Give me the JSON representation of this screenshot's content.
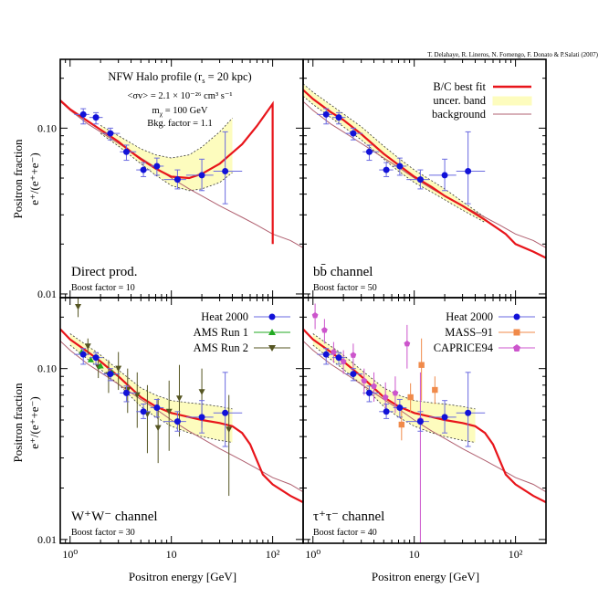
{
  "credit": "T. Delahaye, R. Lineros, N. Fornengo, F. Donato & P.Salati (2007)",
  "shared_axes": {
    "xlabel": "Positron energy [GeV]",
    "ylabel_main": "Positron fraction",
    "ylabel_formula": "e⁺/(e⁺+e⁻)",
    "xscale": "log",
    "yscale": "log",
    "xlim": [
      0.8,
      200
    ],
    "ylim": [
      0.0095,
      0.26
    ],
    "x_tick_labels": [
      "10⁰",
      "10",
      "10²"
    ],
    "y_tick_labels": [
      "0.10",
      "0.01"
    ]
  },
  "top_left_notes": {
    "line1": "NFW Halo profile (r",
    "line1_sub": "s",
    "line1_end": " = 20 kpc)",
    "line2": "<σv> = 2.1 × 10⁻²⁶ cm³ s⁻¹",
    "line3": "m",
    "line3_sub": "χ",
    "line3_end": " = 100 GeV",
    "line4": "Bkg. factor = 1.1"
  },
  "legend_model": {
    "best_fit": "B/C best fit",
    "band": "uncer. band",
    "background": "background"
  },
  "legend_data_bl": {
    "heat": "Heat 2000",
    "ams1": "AMS Run 1",
    "ams2": "AMS Run 2"
  },
  "legend_data_br": {
    "heat": "Heat 2000",
    "mass": "MASS–91",
    "caprice": "CAPRICE94"
  },
  "colors": {
    "best_fit": "#e8151b",
    "band": "#fdfcbe",
    "background": "#b06070",
    "heat": "#1212d8",
    "heat_err": "#6a6ae0",
    "ams1": "#22aa22",
    "ams2": "#555522",
    "mass": "#f08a4a",
    "caprice": "#cc55cc"
  },
  "chart_data": [
    {
      "type": "line",
      "panel": "top-left",
      "channel_label": "Direct prod.",
      "boost_label": "Boost factor = 10",
      "background": {
        "x": [
          0.8,
          1,
          1.5,
          2,
          3,
          5,
          7,
          10,
          15,
          20,
          30,
          50,
          70,
          100,
          150,
          200
        ],
        "y": [
          0.145,
          0.128,
          0.106,
          0.095,
          0.081,
          0.066,
          0.058,
          0.05,
          0.043,
          0.039,
          0.034,
          0.029,
          0.026,
          0.023,
          0.021,
          0.019
        ]
      },
      "best_fit": {
        "x": [
          0.8,
          1,
          1.5,
          2,
          3,
          4,
          5,
          7,
          10,
          15,
          20,
          30,
          50,
          70,
          100,
          100.1
        ],
        "y": [
          0.147,
          0.13,
          0.11,
          0.098,
          0.083,
          0.072,
          0.065,
          0.057,
          0.051,
          0.05,
          0.053,
          0.061,
          0.08,
          0.103,
          0.14,
          0.02
        ]
      },
      "band_upper": {
        "x": [
          2,
          3,
          5,
          7,
          10,
          15,
          20,
          30,
          40
        ],
        "y": [
          0.104,
          0.09,
          0.075,
          0.069,
          0.066,
          0.069,
          0.077,
          0.095,
          0.115
        ]
      },
      "band_lower": {
        "x": [
          2,
          3,
          5,
          7,
          10,
          15,
          20,
          30,
          40
        ],
        "y": [
          0.093,
          0.078,
          0.061,
          0.052,
          0.045,
          0.042,
          0.043,
          0.047,
          0.054
        ]
      },
      "heat": {
        "x": [
          1.35,
          1.8,
          2.5,
          3.6,
          5.3,
          7.2,
          11.5,
          20,
          34
        ],
        "y": [
          0.121,
          0.116,
          0.093,
          0.072,
          0.056,
          0.059,
          0.049,
          0.052,
          0.055
        ],
        "xlo": [
          1.1,
          1.55,
          2.1,
          3.1,
          4.5,
          6.2,
          8.4,
          14,
          26
        ],
        "xhi": [
          1.55,
          2.1,
          3.1,
          4.5,
          6.2,
          8.4,
          14,
          26,
          50
        ],
        "ylo": [
          0.106,
          0.106,
          0.085,
          0.064,
          0.051,
          0.052,
          0.043,
          0.042,
          0.035
        ],
        "yhi": [
          0.131,
          0.124,
          0.1,
          0.079,
          0.062,
          0.066,
          0.056,
          0.065,
          0.095
        ]
      }
    },
    {
      "type": "line",
      "panel": "top-right",
      "channel_label": "bb̄ channel",
      "boost_label": "Boost factor = 50",
      "background": {
        "x": [
          0.8,
          1,
          1.5,
          2,
          3,
          5,
          7,
          10,
          15,
          20,
          30,
          50,
          70,
          100,
          150,
          200
        ],
        "y": [
          0.145,
          0.128,
          0.106,
          0.095,
          0.081,
          0.066,
          0.058,
          0.05,
          0.043,
          0.039,
          0.034,
          0.029,
          0.026,
          0.023,
          0.021,
          0.019
        ]
      },
      "best_fit": {
        "x": [
          0.8,
          1,
          1.5,
          2,
          3,
          5,
          7,
          10,
          15,
          20,
          30,
          50,
          80,
          100,
          150,
          200
        ],
        "y": [
          0.17,
          0.15,
          0.125,
          0.112,
          0.092,
          0.07,
          0.06,
          0.051,
          0.044,
          0.039,
          0.034,
          0.028,
          0.023,
          0.02,
          0.018,
          0.0165
        ]
      },
      "band_upper": {
        "x": [
          0.8,
          1,
          2,
          3,
          5,
          7,
          10,
          15,
          20,
          30,
          50
        ],
        "y": [
          0.185,
          0.165,
          0.122,
          0.102,
          0.078,
          0.066,
          0.056,
          0.048,
          0.043,
          0.036,
          0.029
        ]
      },
      "band_lower": {
        "x": [
          0.8,
          1,
          2,
          3,
          5,
          7,
          10,
          15,
          20,
          30,
          50
        ],
        "y": [
          0.156,
          0.139,
          0.102,
          0.085,
          0.065,
          0.055,
          0.047,
          0.041,
          0.037,
          0.032,
          0.027
        ]
      },
      "heat": {
        "x": [
          1.35,
          1.8,
          2.5,
          3.6,
          5.3,
          7.2,
          11.5,
          20,
          34
        ],
        "y": [
          0.121,
          0.116,
          0.093,
          0.072,
          0.056,
          0.059,
          0.049,
          0.052,
          0.055
        ],
        "xlo": [
          1.1,
          1.55,
          2.1,
          3.1,
          4.5,
          6.2,
          8.4,
          14,
          26
        ],
        "xhi": [
          1.55,
          2.1,
          3.1,
          4.5,
          6.2,
          8.4,
          14,
          26,
          50
        ],
        "ylo": [
          0.106,
          0.106,
          0.085,
          0.064,
          0.051,
          0.052,
          0.043,
          0.042,
          0.035
        ],
        "yhi": [
          0.131,
          0.124,
          0.1,
          0.079,
          0.062,
          0.066,
          0.056,
          0.065,
          0.095
        ]
      }
    },
    {
      "type": "line",
      "panel": "bottom-left",
      "channel_label": "W⁺W⁻ channel",
      "boost_label": "Boost factor = 30",
      "background": {
        "x": [
          0.8,
          1,
          1.5,
          2,
          3,
          5,
          7,
          10,
          15,
          20,
          30,
          50,
          70,
          100,
          150,
          200
        ],
        "y": [
          0.145,
          0.128,
          0.106,
          0.095,
          0.081,
          0.066,
          0.058,
          0.05,
          0.043,
          0.039,
          0.034,
          0.029,
          0.026,
          0.023,
          0.021,
          0.019
        ]
      },
      "best_fit": {
        "x": [
          0.8,
          1,
          1.5,
          2,
          3,
          5,
          7,
          10,
          15,
          20,
          30,
          40,
          50,
          60,
          70,
          80,
          100,
          150,
          200
        ],
        "y": [
          0.17,
          0.148,
          0.125,
          0.11,
          0.09,
          0.068,
          0.06,
          0.055,
          0.052,
          0.05,
          0.048,
          0.046,
          0.042,
          0.036,
          0.029,
          0.024,
          0.021,
          0.018,
          0.0165
        ]
      },
      "band_upper": {
        "x": [
          1,
          2,
          3,
          5,
          7,
          10,
          15,
          20,
          30,
          40
        ],
        "y": [
          0.16,
          0.12,
          0.098,
          0.077,
          0.07,
          0.065,
          0.063,
          0.062,
          0.06,
          0.058
        ]
      },
      "band_lower": {
        "x": [
          1,
          2,
          3,
          5,
          7,
          10,
          15,
          20,
          30,
          40
        ],
        "y": [
          0.137,
          0.099,
          0.081,
          0.06,
          0.052,
          0.046,
          0.042,
          0.04,
          0.038,
          0.037
        ]
      },
      "heat": {
        "x": [
          1.35,
          1.8,
          2.5,
          3.6,
          5.3,
          7.2,
          11.5,
          20,
          34
        ],
        "y": [
          0.121,
          0.116,
          0.093,
          0.072,
          0.056,
          0.059,
          0.049,
          0.052,
          0.055
        ],
        "xlo": [
          1.1,
          1.55,
          2.1,
          3.1,
          4.5,
          6.2,
          8.4,
          14,
          26
        ],
        "xhi": [
          1.55,
          2.1,
          3.1,
          4.5,
          6.2,
          8.4,
          14,
          26,
          50
        ],
        "ylo": [
          0.106,
          0.106,
          0.085,
          0.064,
          0.051,
          0.052,
          0.043,
          0.042,
          0.035
        ],
        "yhi": [
          0.131,
          0.124,
          0.1,
          0.079,
          0.062,
          0.066,
          0.056,
          0.065,
          0.095
        ]
      },
      "ams1": {
        "x": [
          1.3,
          1.6,
          2,
          2.6
        ],
        "y": [
          0.125,
          0.113,
          0.104,
          0.095
        ]
      },
      "ams2": {
        "x": [
          1.2,
          1.5,
          1.9,
          2.4,
          3,
          3.7,
          4.6,
          5.8,
          7.4,
          9.5,
          12,
          20,
          37
        ],
        "y": [
          0.23,
          0.135,
          0.102,
          0.092,
          0.1,
          0.075,
          0.07,
          0.054,
          0.045,
          0.056,
          0.067,
          0.073,
          0.044
        ],
        "ylo": [
          0.2,
          0.12,
          0.088,
          0.072,
          0.075,
          0.055,
          0.045,
          0.032,
          0.028,
          0.033,
          0.04,
          0.045,
          0.018
        ],
        "yhi": [
          0.27,
          0.15,
          0.118,
          0.112,
          0.125,
          0.1,
          0.095,
          0.08,
          0.067,
          0.085,
          0.105,
          0.1,
          0.07
        ]
      }
    },
    {
      "type": "line",
      "panel": "bottom-right",
      "channel_label": "τ⁺τ⁻ channel",
      "boost_label": "Boost factor = 40",
      "background": {
        "x": [
          0.8,
          1,
          1.5,
          2,
          3,
          5,
          7,
          10,
          15,
          20,
          30,
          50,
          70,
          100,
          150,
          200
        ],
        "y": [
          0.145,
          0.128,
          0.106,
          0.095,
          0.081,
          0.066,
          0.058,
          0.05,
          0.043,
          0.039,
          0.034,
          0.029,
          0.026,
          0.023,
          0.021,
          0.019
        ]
      },
      "best_fit": {
        "x": [
          0.8,
          1,
          1.5,
          2,
          3,
          5,
          7,
          10,
          15,
          20,
          30,
          40,
          50,
          60,
          70,
          80,
          100,
          150,
          200
        ],
        "y": [
          0.17,
          0.148,
          0.125,
          0.11,
          0.09,
          0.068,
          0.06,
          0.055,
          0.052,
          0.05,
          0.048,
          0.046,
          0.042,
          0.036,
          0.029,
          0.024,
          0.021,
          0.018,
          0.0165
        ]
      },
      "band_upper": {
        "x": [
          1,
          2,
          3,
          5,
          7,
          10,
          15,
          20,
          30,
          40
        ],
        "y": [
          0.16,
          0.12,
          0.098,
          0.077,
          0.07,
          0.065,
          0.063,
          0.062,
          0.06,
          0.058
        ]
      },
      "band_lower": {
        "x": [
          1,
          2,
          3,
          5,
          7,
          10,
          15,
          20,
          30,
          40
        ],
        "y": [
          0.137,
          0.099,
          0.081,
          0.06,
          0.052,
          0.046,
          0.042,
          0.04,
          0.038,
          0.037
        ]
      },
      "heat": {
        "x": [
          1.35,
          1.8,
          2.5,
          3.6,
          5.3,
          7.2,
          11.5,
          20,
          34
        ],
        "y": [
          0.121,
          0.116,
          0.093,
          0.072,
          0.056,
          0.059,
          0.049,
          0.052,
          0.055
        ],
        "xlo": [
          1.1,
          1.55,
          2.1,
          3.1,
          4.5,
          6.2,
          8.4,
          14,
          26
        ],
        "xhi": [
          1.55,
          2.1,
          3.1,
          4.5,
          6.2,
          8.4,
          14,
          26,
          50
        ],
        "ylo": [
          0.106,
          0.106,
          0.085,
          0.064,
          0.051,
          0.052,
          0.043,
          0.042,
          0.035
        ],
        "yhi": [
          0.131,
          0.124,
          0.1,
          0.079,
          0.062,
          0.066,
          0.056,
          0.065,
          0.095
        ]
      },
      "mass": {
        "x": [
          7.5,
          9.2,
          11.8,
          16
        ],
        "y": [
          0.047,
          0.068,
          0.105,
          0.075
        ],
        "ylo": [
          0.038,
          0.055,
          0.065,
          0.062
        ],
        "yhi": [
          0.058,
          0.082,
          0.15,
          0.09
        ]
      },
      "caprice": {
        "x": [
          1.05,
          1.3,
          1.6,
          2,
          2.5,
          3.2,
          4,
          5.2,
          6.5,
          8.5,
          11.5
        ],
        "y": [
          0.205,
          0.168,
          0.125,
          0.11,
          0.12,
          0.085,
          0.079,
          0.068,
          0.072,
          0.14,
          0.05
        ],
        "ylo": [
          0.17,
          0.14,
          0.108,
          0.093,
          0.1,
          0.07,
          0.064,
          0.054,
          0.055,
          0.1,
          0.008
        ],
        "yhi": [
          0.24,
          0.195,
          0.143,
          0.128,
          0.14,
          0.1,
          0.095,
          0.083,
          0.09,
          0.18,
          0.095
        ]
      }
    }
  ]
}
